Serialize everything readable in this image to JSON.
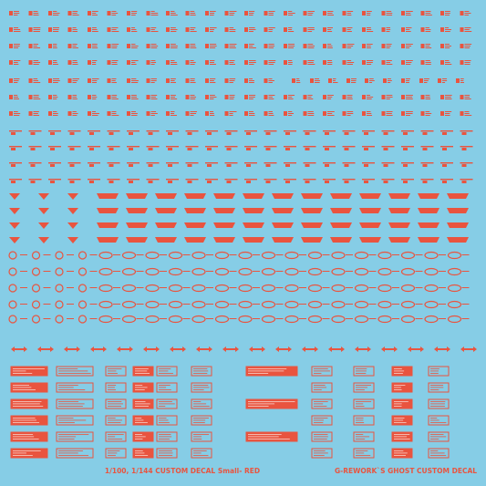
{
  "footer": {
    "left": "1/100, 1/144 CUSTOM DECAL Small- RED",
    "right": "G-REWORK`S GHOST CUSTOM DECAL"
  }
}
